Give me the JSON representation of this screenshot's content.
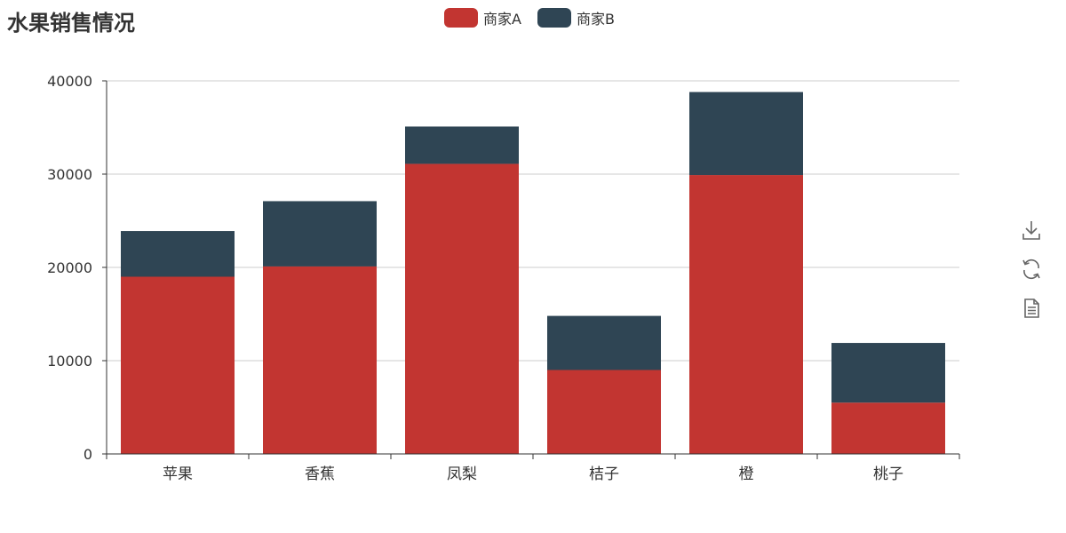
{
  "title": "水果销售情况",
  "legend": [
    {
      "name": "商家A",
      "color": "#c23531"
    },
    {
      "name": "商家B",
      "color": "#2f4554"
    }
  ],
  "toolbox": [
    {
      "icon": "download-icon"
    },
    {
      "icon": "refresh-icon"
    },
    {
      "icon": "data-view-icon"
    }
  ],
  "chart_data": {
    "type": "bar",
    "stacked": true,
    "categories": [
      "苹果",
      "香蕉",
      "凤梨",
      "桔子",
      "橙",
      "桃子"
    ],
    "series": [
      {
        "name": "商家A",
        "color": "#c23531",
        "values": [
          19000,
          20100,
          31100,
          9000,
          29900,
          5500
        ]
      },
      {
        "name": "商家B",
        "color": "#2f4554",
        "values": [
          4900,
          7000,
          4000,
          5800,
          8900,
          6400
        ]
      }
    ],
    "ylim": [
      0,
      40000
    ],
    "yticks": [
      0,
      10000,
      20000,
      30000,
      40000
    ],
    "grid": true,
    "legend_position": "top-center"
  }
}
